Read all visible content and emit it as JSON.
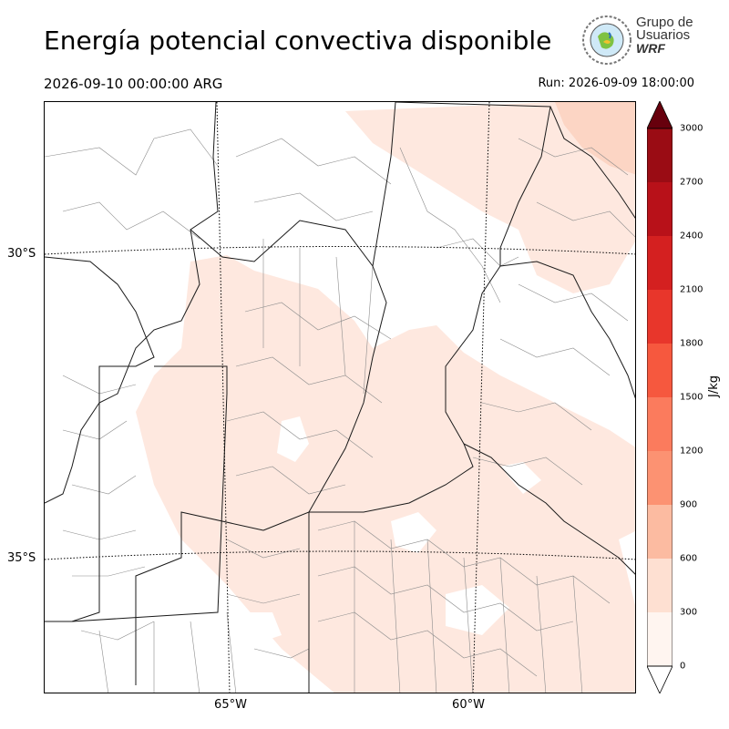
{
  "title": "Energía potencial convectiva disponible",
  "valid_time": "2026-09-10 00:00:00 ARG",
  "run_time": "Run: 2026-09-09 18:00:00",
  "logo": {
    "line1": "Grupo de",
    "line2": "Usuarios",
    "line3": "WRF"
  },
  "map": {
    "lat_labels": [
      "30°S",
      "35°S"
    ],
    "lon_labels": [
      "65°W",
      "60°W"
    ],
    "cape_shading_color": "#fee8df",
    "cape_shading_light_color": "#fcd5c4",
    "border_color": "#1a1a1a",
    "department_color": "#8c8c8c"
  },
  "colorbar": {
    "units": "J/kg",
    "ticks": [
      "0",
      "300",
      "600",
      "900",
      "1200",
      "1500",
      "1800",
      "2100",
      "2400",
      "2700",
      "3000"
    ],
    "colors": [
      "#fff5f0",
      "#fee0d2",
      "#fcbba1",
      "#fc9272",
      "#fb7b5d",
      "#f6583e",
      "#e8362b",
      "#d42020",
      "#b81119",
      "#9a0c14",
      "#7c0711"
    ],
    "extend_low": "#ffffff",
    "extend_high": "#67000d"
  }
}
